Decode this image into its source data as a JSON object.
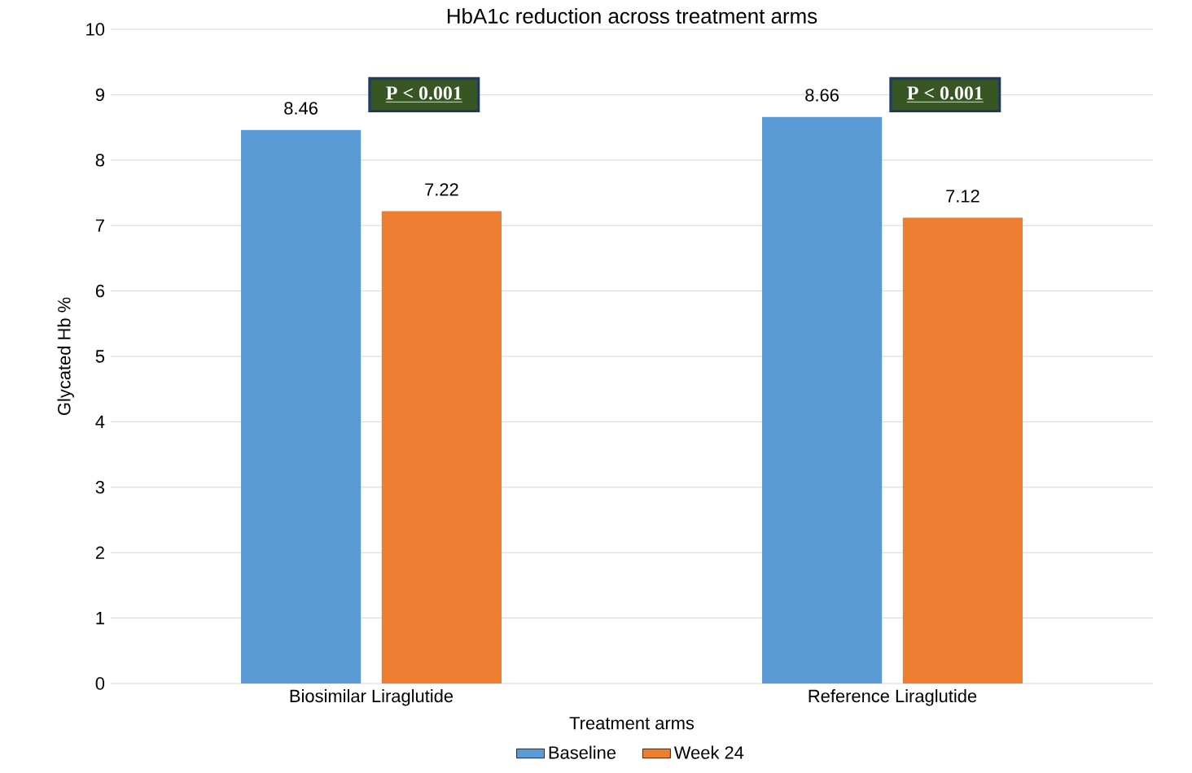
{
  "chart_data": {
    "type": "bar",
    "title": "HbA1c reduction across treatment arms",
    "xlabel": "Treatment arms",
    "ylabel": "Glycated Hb %",
    "categories": [
      "Biosimilar Liraglutide",
      "Reference Liraglutide"
    ],
    "series": [
      {
        "name": "Baseline",
        "color": "#5b9bd5",
        "values": [
          8.46,
          8.66
        ]
      },
      {
        "name": "Week 24",
        "color": "#ed7d31",
        "values": [
          7.22,
          7.12
        ]
      }
    ],
    "ylim": [
      0,
      10
    ],
    "yticks": [
      0,
      1,
      2,
      3,
      4,
      5,
      6,
      7,
      8,
      9,
      10
    ],
    "grid": "y",
    "legend": "bottom",
    "data_labels": true,
    "annotations": [
      "P < 0.001",
      "P < 0.001"
    ]
  }
}
